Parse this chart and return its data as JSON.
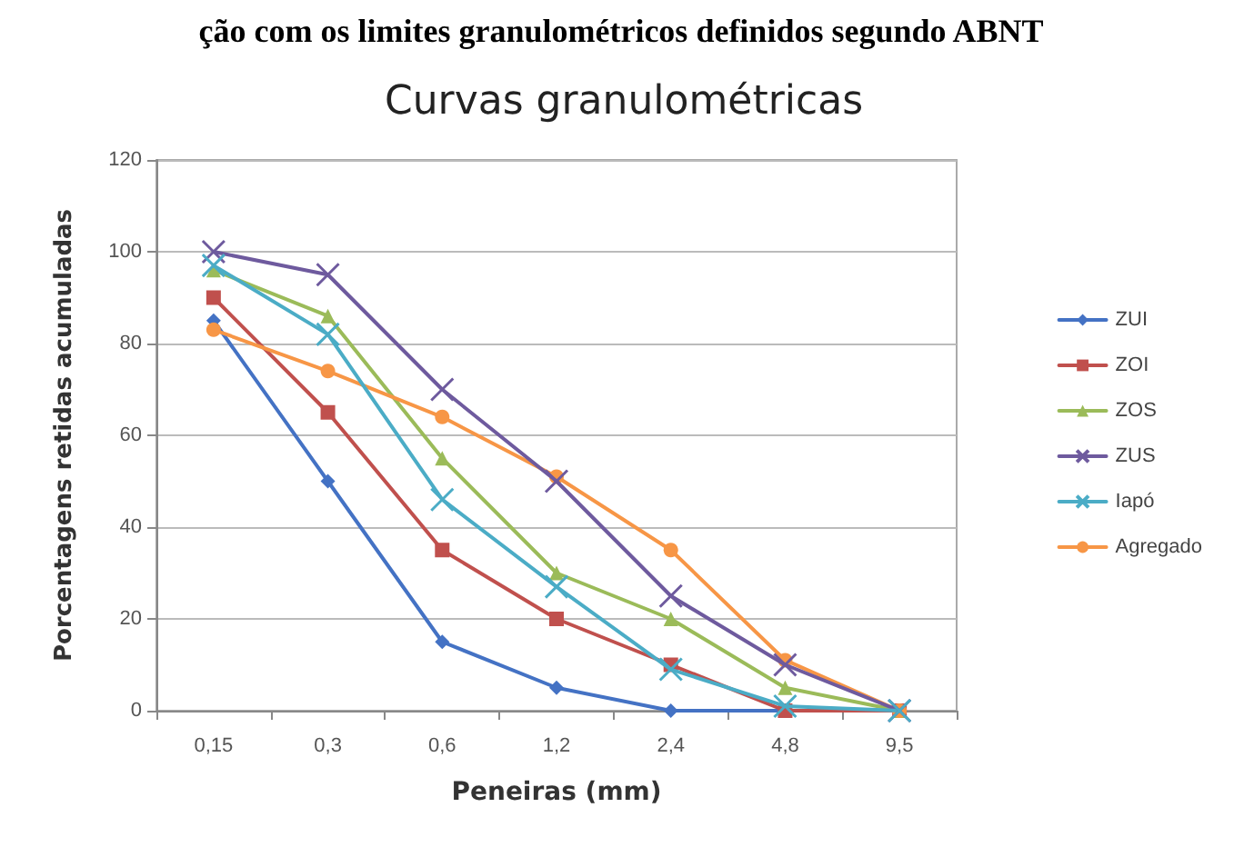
{
  "chart_data": {
    "type": "line",
    "title": "Curvas granulométricas",
    "xlabel": "Peneiras (mm)",
    "ylabel": "Porcentagens retidas acumuladas",
    "annotations": [
      "ção com os limites granulométricos definidos segundo ABNT"
    ],
    "categories": [
      "0,15",
      "0,3",
      "0,6",
      "1,2",
      "2,4",
      "4,8",
      "9,5"
    ],
    "series": [
      {
        "name": "ZUI",
        "color": "#4472c4",
        "marker": "diamond",
        "values": [
          85,
          50,
          15,
          5,
          0,
          0,
          0
        ]
      },
      {
        "name": "ZOI",
        "color": "#c0504d",
        "marker": "square",
        "values": [
          90,
          65,
          35,
          20,
          10,
          0,
          0
        ]
      },
      {
        "name": "ZOS",
        "color": "#9bbb59",
        "marker": "triangle",
        "values": [
          96,
          86,
          55,
          30,
          20,
          5,
          0
        ]
      },
      {
        "name": "ZUS",
        "color": "#6e5a9e",
        "marker": "cross",
        "values": [
          100,
          95,
          70,
          50,
          25,
          10,
          0
        ]
      },
      {
        "name": "Iapó",
        "color": "#4bacc6",
        "marker": "cross",
        "values": [
          97,
          82,
          46,
          27,
          9,
          1,
          0
        ]
      },
      {
        "name": "Agregado",
        "color": "#f79646",
        "marker": "circle",
        "values": [
          83,
          74,
          64,
          51,
          35,
          11,
          0
        ]
      }
    ],
    "ylim": [
      0,
      120
    ],
    "yticks": [
      0,
      20,
      40,
      60,
      80,
      100,
      120
    ],
    "grid": "y",
    "legend": "right",
    "line_style": "solid"
  }
}
